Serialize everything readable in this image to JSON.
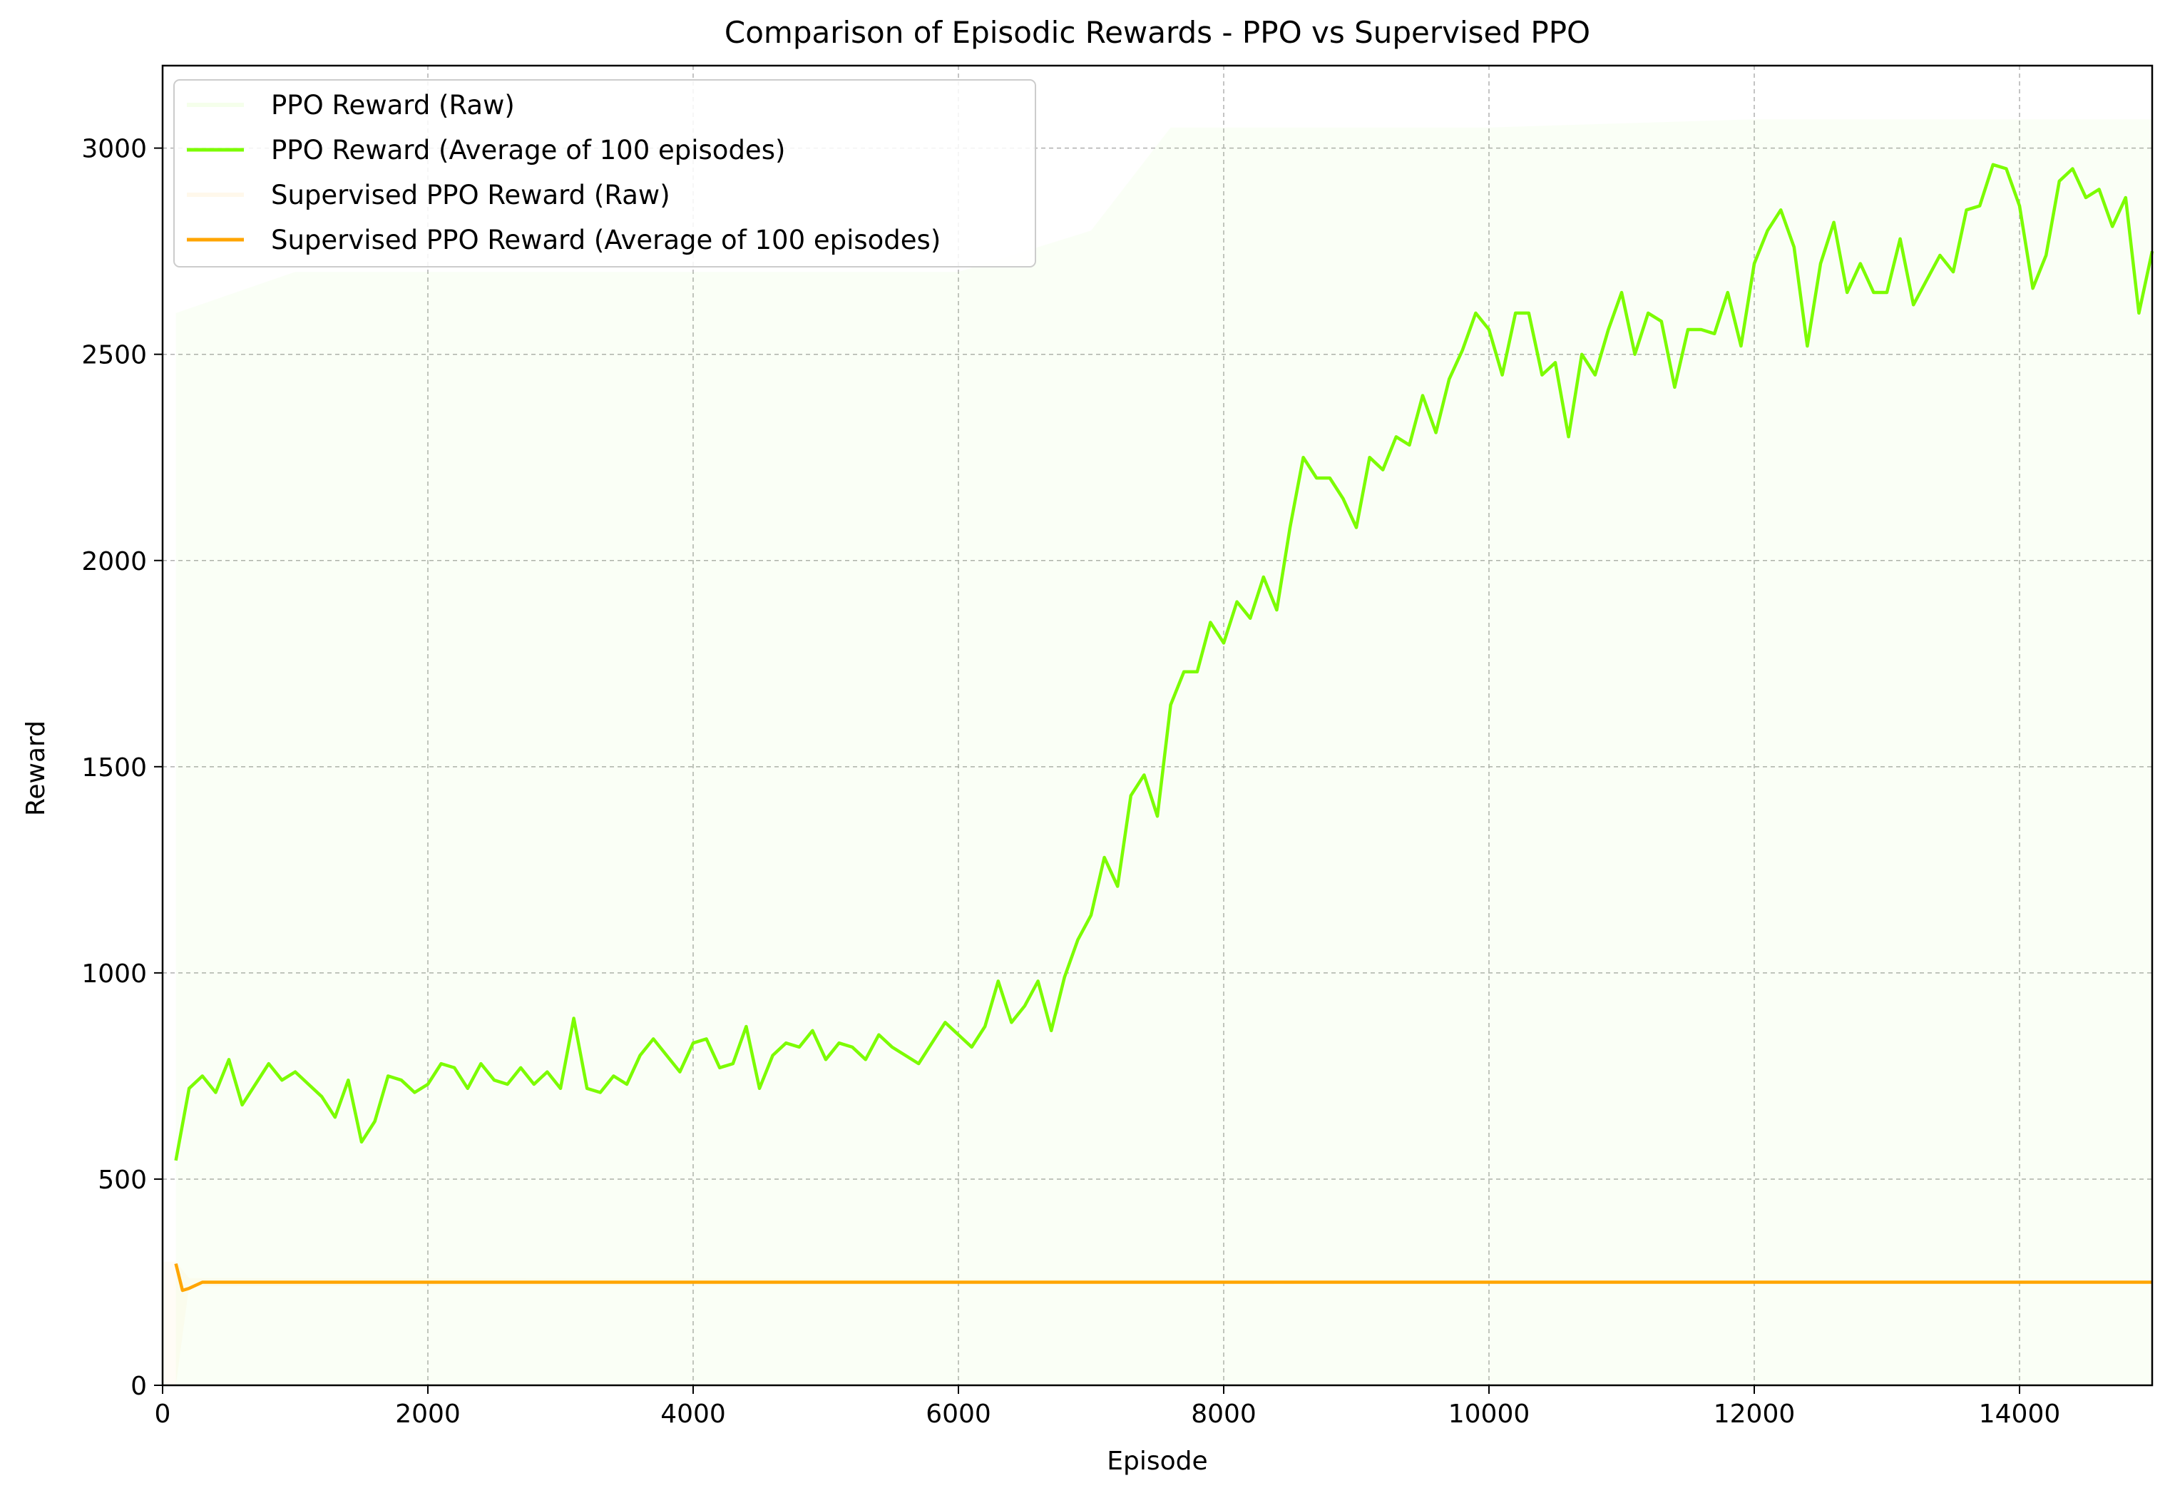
{
  "chart_data": {
    "type": "line",
    "title": "Comparison of Episodic Rewards - PPO vs Supervised PPO",
    "xlabel": "Episode",
    "ylabel": "Reward",
    "xlim": [
      0,
      15000
    ],
    "ylim": [
      0,
      3200
    ],
    "xticks": [
      0,
      2000,
      4000,
      6000,
      8000,
      10000,
      12000,
      14000
    ],
    "yticks": [
      0,
      500,
      1000,
      1500,
      2000,
      2500,
      3000
    ],
    "grid": true,
    "legend_position": "upper-left",
    "series": [
      {
        "name": "PPO Reward (Raw)",
        "color": "#7CFC00",
        "style": "raw-band",
        "x": [
          100,
          1000,
          3000,
          5000,
          6000,
          7000,
          7600,
          8000,
          10000,
          12000,
          14000,
          15000
        ],
        "y_low": [
          0,
          0,
          0,
          0,
          0,
          0,
          0,
          0,
          0,
          0,
          0,
          0
        ],
        "y_high": [
          2600,
          2700,
          2700,
          2700,
          2700,
          2800,
          3050,
          3050,
          3050,
          3070,
          3070,
          3070
        ]
      },
      {
        "name": "PPO Reward (Average of 100 episodes)",
        "color": "#7CFC00",
        "x": [
          100,
          200,
          300,
          400,
          500,
          600,
          700,
          800,
          900,
          1000,
          1100,
          1200,
          1300,
          1400,
          1500,
          1600,
          1700,
          1800,
          1900,
          2000,
          2100,
          2200,
          2300,
          2400,
          2500,
          2600,
          2700,
          2800,
          2900,
          3000,
          3100,
          3200,
          3300,
          3400,
          3500,
          3600,
          3700,
          3800,
          3900,
          4000,
          4100,
          4200,
          4300,
          4400,
          4500,
          4600,
          4700,
          4800,
          4900,
          5000,
          5100,
          5200,
          5300,
          5400,
          5500,
          5600,
          5700,
          5800,
          5900,
          6000,
          6100,
          6200,
          6300,
          6400,
          6500,
          6600,
          6700,
          6800,
          6900,
          7000,
          7100,
          7200,
          7300,
          7400,
          7500,
          7600,
          7700,
          7800,
          7900,
          8000,
          8100,
          8200,
          8300,
          8400,
          8500,
          8600,
          8700,
          8800,
          8900,
          9000,
          9100,
          9200,
          9300,
          9400,
          9500,
          9600,
          9700,
          9800,
          9900,
          10000,
          10100,
          10200,
          10300,
          10400,
          10500,
          10600,
          10700,
          10800,
          10900,
          11000,
          11100,
          11200,
          11300,
          11400,
          11500,
          11600,
          11700,
          11800,
          11900,
          12000,
          12100,
          12200,
          12300,
          12400,
          12500,
          12600,
          12700,
          12800,
          12900,
          13000,
          13100,
          13200,
          13300,
          13400,
          13500,
          13600,
          13700,
          13800,
          13900,
          14000,
          14100,
          14200,
          14300,
          14400,
          14500,
          14600,
          14700,
          14800,
          14900,
          15000
        ],
        "y": [
          545,
          720,
          750,
          710,
          790,
          680,
          730,
          780,
          740,
          760,
          730,
          700,
          650,
          740,
          590,
          640,
          750,
          740,
          710,
          730,
          780,
          770,
          720,
          780,
          740,
          730,
          770,
          730,
          760,
          720,
          890,
          720,
          710,
          750,
          730,
          800,
          840,
          800,
          760,
          830,
          840,
          770,
          780,
          870,
          720,
          800,
          830,
          820,
          860,
          790,
          830,
          820,
          790,
          850,
          820,
          800,
          780,
          830,
          880,
          850,
          820,
          870,
          980,
          880,
          920,
          980,
          860,
          990,
          1080,
          1140,
          1280,
          1210,
          1430,
          1480,
          1380,
          1650,
          1730,
          1730,
          1850,
          1800,
          1900,
          1860,
          1960,
          1880,
          2080,
          2250,
          2200,
          2200,
          2150,
          2080,
          2250,
          2220,
          2300,
          2280,
          2400,
          2310,
          2440,
          2510,
          2600,
          2560,
          2450,
          2600,
          2600,
          2450,
          2480,
          2300,
          2500,
          2450,
          2560,
          2650,
          2500,
          2600,
          2580,
          2420,
          2560,
          2560,
          2550,
          2650,
          2520,
          2720,
          2800,
          2850,
          2760,
          2520,
          2720,
          2820,
          2650,
          2720,
          2650,
          2650,
          2780,
          2620,
          2680,
          2740,
          2700,
          2850,
          2860,
          2960,
          2950,
          2860,
          2660,
          2740,
          2920,
          2950,
          2880,
          2900,
          2810,
          2880,
          2600,
          2750
        ]
      },
      {
        "name": "Supervised PPO Reward (Raw)",
        "color": "#FFA500",
        "style": "raw-band",
        "x": [
          0,
          100,
          200,
          15000
        ],
        "y_low": [
          0,
          0,
          240,
          250
        ],
        "y_high": [
          300,
          300,
          260,
          255
        ]
      },
      {
        "name": "Supervised PPO Reward (Average of 100 episodes)",
        "color": "#FFA500",
        "x": [
          100,
          150,
          200,
          300,
          15000
        ],
        "y": [
          295,
          230,
          235,
          250,
          250
        ]
      }
    ]
  }
}
